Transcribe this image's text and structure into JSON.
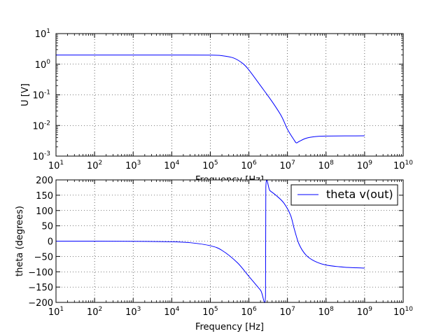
{
  "chart_data": [
    {
      "type": "line",
      "xscale": "log",
      "yscale": "log",
      "xlabel": "Frequency [Hz]",
      "ylabel": "U [V]",
      "xlim": [
        10,
        10000000000
      ],
      "ylim": [
        0.001,
        10
      ],
      "grid": true,
      "x_ticks": [
        {
          "base": "10",
          "exp": "1"
        },
        {
          "base": "10",
          "exp": "2"
        },
        {
          "base": "10",
          "exp": "3"
        },
        {
          "base": "10",
          "exp": "4"
        },
        {
          "base": "10",
          "exp": "5"
        },
        {
          "base": "10",
          "exp": "6"
        },
        {
          "base": "10",
          "exp": "7"
        },
        {
          "base": "10",
          "exp": "8"
        },
        {
          "base": "10",
          "exp": "9"
        },
        {
          "base": "10",
          "exp": "10"
        }
      ],
      "y_ticks": [
        {
          "base": "10",
          "exp": "-3"
        },
        {
          "base": "10",
          "exp": "-2"
        },
        {
          "base": "10",
          "exp": "-1"
        },
        {
          "base": "10",
          "exp": "0"
        },
        {
          "base": "10",
          "exp": "1"
        }
      ],
      "series": [
        {
          "color": "#0000ff",
          "x": [
            10,
            100,
            1000,
            10000,
            100000,
            200000,
            400000,
            700000,
            1000000,
            2000000,
            4000000,
            7000000,
            10000000,
            15000000,
            17000000,
            20000000,
            30000000,
            50000000,
            100000000,
            1000000000
          ],
          "y": [
            2.0,
            2.0,
            2.0,
            2.0,
            1.98,
            1.9,
            1.6,
            1.05,
            0.65,
            0.2,
            0.06,
            0.02,
            0.0075,
            0.0033,
            0.0027,
            0.003,
            0.0038,
            0.0043,
            0.0045,
            0.0046
          ]
        }
      ]
    },
    {
      "type": "line",
      "xscale": "log",
      "xlabel": "Frequency [Hz]",
      "ylabel": "theta (degrees)",
      "xlim": [
        10,
        10000000000
      ],
      "ylim": [
        -200,
        200
      ],
      "grid": true,
      "legend_position": "top-right",
      "x_ticks": [
        {
          "base": "10",
          "exp": "1"
        },
        {
          "base": "10",
          "exp": "2"
        },
        {
          "base": "10",
          "exp": "3"
        },
        {
          "base": "10",
          "exp": "4"
        },
        {
          "base": "10",
          "exp": "5"
        },
        {
          "base": "10",
          "exp": "6"
        },
        {
          "base": "10",
          "exp": "7"
        },
        {
          "base": "10",
          "exp": "8"
        },
        {
          "base": "10",
          "exp": "9"
        },
        {
          "base": "10",
          "exp": "10"
        }
      ],
      "y_ticks": [
        "200",
        "150",
        "100",
        "50",
        "0",
        "−50",
        "−100",
        "−150",
        "−200"
      ],
      "series": [
        {
          "name": "theta v(out)",
          "color": "#0000ff",
          "x": [
            10,
            100,
            1000,
            10000,
            30000,
            100000,
            200000,
            500000,
            1000000,
            2000000,
            2700000,
            2750000,
            3500000,
            5000000,
            8000000,
            12000000,
            15000000,
            20000000,
            30000000,
            50000000,
            100000000,
            300000000,
            1000000000
          ],
          "y": [
            0,
            0,
            -0.5,
            -2,
            -5,
            -15,
            -30,
            -70,
            -115,
            -160,
            -178,
            176,
            165,
            150,
            125,
            85,
            40,
            -10,
            -45,
            -65,
            -78,
            -85,
            -88
          ]
        }
      ]
    }
  ]
}
